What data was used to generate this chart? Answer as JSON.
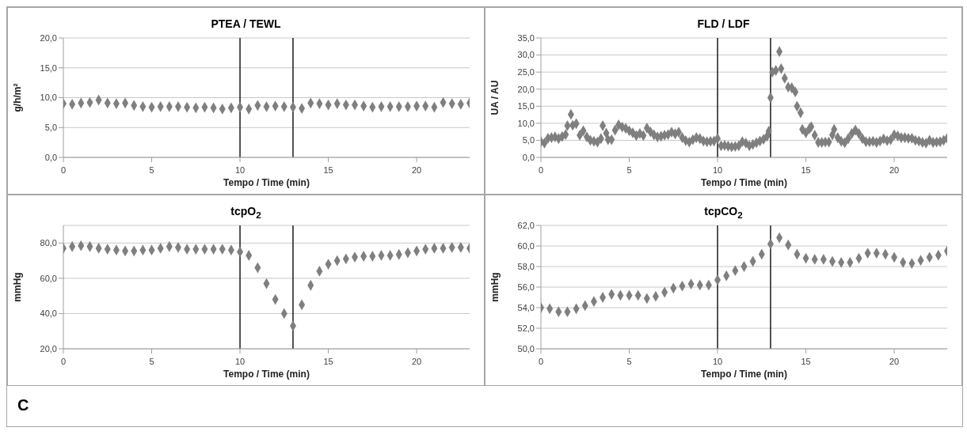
{
  "chart_data": [
    {
      "type": "scatter",
      "title": "PTEA / TEWL",
      "xlabel": "Tempo / Time (min)",
      "ylabel": "g/h/m²",
      "marker": "diamond",
      "color": "#7f7f7f",
      "grid": "y",
      "x": [
        0,
        0.5,
        1,
        1.5,
        2,
        2.5,
        3,
        3.5,
        4,
        4.5,
        5,
        5.5,
        6,
        6.5,
        7,
        7.5,
        8,
        8.5,
        9,
        9.5,
        10,
        10.5,
        11,
        11.5,
        12,
        12.5,
        13,
        13.5,
        14,
        14.5,
        15,
        15.5,
        16,
        16.5,
        17,
        17.5,
        18,
        18.5,
        19,
        19.5,
        20,
        20.5,
        21,
        21.5,
        22,
        22.5,
        23
      ],
      "values": [
        9.0,
        8.9,
        9.1,
        9.2,
        9.6,
        9.1,
        9.0,
        9.1,
        8.7,
        8.5,
        8.4,
        8.5,
        8.5,
        8.5,
        8.4,
        8.3,
        8.4,
        8.3,
        8.1,
        8.3,
        8.4,
        8.1,
        8.7,
        8.5,
        8.6,
        8.5,
        8.4,
        8.2,
        9.1,
        9.0,
        8.8,
        9.0,
        8.8,
        8.8,
        8.6,
        8.4,
        8.5,
        8.5,
        8.5,
        8.5,
        8.6,
        8.6,
        8.4,
        9.2,
        9.0,
        8.9,
        9.1
      ],
      "xlim": [
        0,
        23
      ],
      "xticks": [
        0,
        5,
        10,
        15,
        20
      ],
      "ylim": [
        0,
        20
      ],
      "yticks": [
        {
          "value": 0,
          "label": "0,0"
        },
        {
          "value": 5,
          "label": "5,0"
        },
        {
          "value": 10,
          "label": "10,0"
        },
        {
          "value": 15,
          "label": "15,0"
        },
        {
          "value": 20,
          "label": "20,0"
        }
      ],
      "ref_lines": [
        {
          "axis": "x",
          "value": 10,
          "color": "#1a1a1a"
        },
        {
          "axis": "x",
          "value": 13,
          "color": "#1a1a1a"
        }
      ]
    },
    {
      "type": "scatter",
      "title": "FLD / LDF",
      "xlabel": "Tempo / Time (min)",
      "ylabel": "UA / AU",
      "marker": "diamond",
      "color": "#7f7f7f",
      "grid": "y",
      "x": [
        0,
        0.2,
        0.4,
        0.6,
        0.8,
        1.0,
        1.2,
        1.4,
        1.5,
        1.7,
        1.8,
        2.0,
        2.2,
        2.4,
        2.6,
        2.8,
        3.0,
        3.2,
        3.4,
        3.5,
        3.7,
        3.8,
        4.0,
        4.2,
        4.4,
        4.6,
        4.8,
        5.0,
        5.2,
        5.4,
        5.6,
        5.8,
        6.0,
        6.2,
        6.4,
        6.6,
        6.8,
        7.0,
        7.2,
        7.4,
        7.6,
        7.8,
        8.0,
        8.2,
        8.4,
        8.6,
        8.8,
        9.0,
        9.2,
        9.4,
        9.6,
        9.8,
        10.0,
        10.2,
        10.4,
        10.6,
        10.8,
        11.0,
        11.2,
        11.4,
        11.6,
        11.8,
        12.0,
        12.2,
        12.4,
        12.6,
        12.8,
        12.9,
        13.0,
        13.1,
        13.3,
        13.5,
        13.6,
        13.8,
        14.0,
        14.2,
        14.4,
        14.5,
        14.7,
        14.8,
        15.0,
        15.2,
        15.3,
        15.5,
        15.7,
        15.9,
        16.1,
        16.3,
        16.5,
        16.6,
        16.8,
        17.0,
        17.2,
        17.4,
        17.6,
        17.8,
        18.0,
        18.2,
        18.4,
        18.6,
        18.8,
        19.0,
        19.2,
        19.4,
        19.6,
        19.8,
        20.0,
        20.2,
        20.4,
        20.6,
        20.8,
        21.0,
        21.2,
        21.4,
        21.6,
        21.8,
        22.0,
        22.2,
        22.4,
        22.6,
        22.8,
        23.0
      ],
      "values": [
        4.6,
        4.2,
        5.6,
        5.8,
        6.0,
        5.5,
        6.1,
        6.7,
        9.3,
        12.6,
        9.4,
        9.9,
        6.5,
        7.8,
        6.0,
        5.0,
        4.7,
        4.5,
        5.5,
        9.3,
        7.1,
        5.2,
        5.2,
        8.0,
        9.5,
        8.9,
        8.5,
        7.8,
        7.2,
        6.4,
        7.0,
        6.4,
        8.6,
        7.5,
        6.6,
        6.0,
        6.2,
        6.5,
        6.7,
        7.4,
        6.9,
        7.4,
        5.8,
        4.9,
        4.5,
        5.2,
        5.8,
        5.5,
        4.8,
        4.6,
        4.7,
        4.8,
        5.5,
        3.4,
        3.5,
        3.3,
        3.1,
        3.2,
        3.4,
        4.6,
        4.2,
        3.4,
        3.8,
        4.3,
        4.8,
        5.3,
        6.2,
        7.7,
        17.5,
        25.0,
        25.5,
        31.0,
        26.0,
        23.2,
        20.6,
        20.4,
        19.2,
        15.0,
        13.1,
        8.2,
        7.2,
        8.4,
        9.0,
        6.5,
        4.4,
        4.4,
        4.5,
        4.5,
        6.6,
        8.2,
        5.8,
        4.7,
        4.3,
        5.5,
        7.0,
        8.0,
        7.0,
        5.5,
        4.6,
        4.6,
        4.7,
        4.4,
        4.8,
        5.4,
        4.9,
        5.2,
        6.6,
        6.3,
        5.8,
        5.8,
        5.6,
        5.6,
        5.0,
        4.8,
        4.4,
        4.2,
        5.0,
        4.4,
        4.5,
        4.6,
        5.0,
        5.6
      ],
      "xlim": [
        0,
        23
      ],
      "xticks": [
        0,
        5,
        10,
        15,
        20
      ],
      "ylim": [
        0,
        35
      ],
      "yticks": [
        {
          "value": 0,
          "label": "0,0"
        },
        {
          "value": 5,
          "label": "5,0"
        },
        {
          "value": 10,
          "label": "10,0"
        },
        {
          "value": 15,
          "label": "15,0"
        },
        {
          "value": 20,
          "label": "20,0"
        },
        {
          "value": 25,
          "label": "25,0"
        },
        {
          "value": 30,
          "label": "30,0"
        },
        {
          "value": 35,
          "label": "35,0"
        }
      ],
      "ref_lines": [
        {
          "axis": "x",
          "value": 10,
          "color": "#1a1a1a"
        },
        {
          "axis": "x",
          "value": 13,
          "color": "#1a1a1a"
        }
      ]
    },
    {
      "type": "scatter",
      "title": "tcpO$_{2}$",
      "xlabel": "Tempo / Time (min)",
      "ylabel": "mmHg",
      "marker": "diamond",
      "color": "#7f7f7f",
      "grid": "y",
      "x": [
        0,
        0.5,
        1,
        1.5,
        2,
        2.5,
        3,
        3.5,
        4,
        4.5,
        5,
        5.5,
        6,
        6.5,
        7,
        7.5,
        8,
        8.5,
        9,
        9.5,
        10,
        10.5,
        11,
        11.5,
        12,
        12.5,
        13,
        13.5,
        14,
        14.5,
        15,
        15.5,
        16,
        16.5,
        17,
        17.5,
        18,
        18.5,
        19,
        19.5,
        20,
        20.5,
        21,
        21.5,
        22,
        22.5,
        23
      ],
      "values": [
        77,
        78,
        78.5,
        78,
        77,
        76.5,
        76,
        75.5,
        75.5,
        76,
        76,
        77,
        78,
        77.5,
        76.5,
        76.5,
        76.5,
        76.5,
        76.5,
        76,
        75,
        73,
        66,
        57,
        48,
        40,
        33,
        45,
        56,
        64,
        68,
        70,
        71,
        72,
        72.5,
        72.5,
        73,
        73,
        73.5,
        74.5,
        75.5,
        76.5,
        77,
        77,
        77.5,
        77.5,
        77
      ],
      "xlim": [
        0,
        23
      ],
      "xticks": [
        0,
        5,
        10,
        15,
        20
      ],
      "ylim": [
        20,
        90
      ],
      "yticks": [
        {
          "value": 20,
          "label": "20,0"
        },
        {
          "value": 40,
          "label": "40,0"
        },
        {
          "value": 60,
          "label": "60,0"
        },
        {
          "value": 80,
          "label": "80,0"
        }
      ],
      "ref_lines": [
        {
          "axis": "x",
          "value": 10,
          "color": "#1a1a1a"
        },
        {
          "axis": "x",
          "value": 13,
          "color": "#1a1a1a"
        }
      ],
      "annotations": [
        "C"
      ]
    },
    {
      "type": "scatter",
      "title": "tcpCO$_{2}$",
      "xlabel": "Tempo / Time (min)",
      "ylabel": "mmHg",
      "marker": "diamond",
      "color": "#7f7f7f",
      "grid": "y",
      "x": [
        0,
        0.5,
        1,
        1.5,
        2,
        2.5,
        3,
        3.5,
        4,
        4.5,
        5,
        5.5,
        6,
        6.5,
        7,
        7.5,
        8,
        8.5,
        9,
        9.5,
        10,
        10.5,
        11,
        11.5,
        12,
        12.5,
        13,
        13.5,
        14,
        14.5,
        15,
        15.5,
        16,
        16.5,
        17,
        17.5,
        18,
        18.5,
        19,
        19.5,
        20,
        20.5,
        21,
        21.5,
        22,
        22.5,
        23
      ],
      "values": [
        54.0,
        53.9,
        53.6,
        53.6,
        53.9,
        54.2,
        54.6,
        55.0,
        55.3,
        55.2,
        55.2,
        55.2,
        54.9,
        55.1,
        55.5,
        55.9,
        56.1,
        56.3,
        56.2,
        56.2,
        56.7,
        57.1,
        57.6,
        58.0,
        58.5,
        59.2,
        60.2,
        60.8,
        60.1,
        59.2,
        58.8,
        58.7,
        58.7,
        58.5,
        58.4,
        58.4,
        58.8,
        59.3,
        59.3,
        59.2,
        58.9,
        58.4,
        58.3,
        58.6,
        58.9,
        59.1,
        59.5
      ],
      "xlim": [
        0,
        23
      ],
      "xticks": [
        0,
        5,
        10,
        15,
        20
      ],
      "ylim": [
        50,
        62
      ],
      "yticks": [
        {
          "value": 50,
          "label": "50,0"
        },
        {
          "value": 52,
          "label": "52,0"
        },
        {
          "value": 54,
          "label": "54,0"
        },
        {
          "value": 56,
          "label": "56,0"
        },
        {
          "value": 58,
          "label": "58,0"
        },
        {
          "value": 60,
          "label": "60,0"
        },
        {
          "value": 62,
          "label": "62,0"
        }
      ],
      "ref_lines": [
        {
          "axis": "x",
          "value": 10,
          "color": "#1a1a1a"
        },
        {
          "axis": "x",
          "value": 13,
          "color": "#1a1a1a"
        }
      ]
    }
  ]
}
